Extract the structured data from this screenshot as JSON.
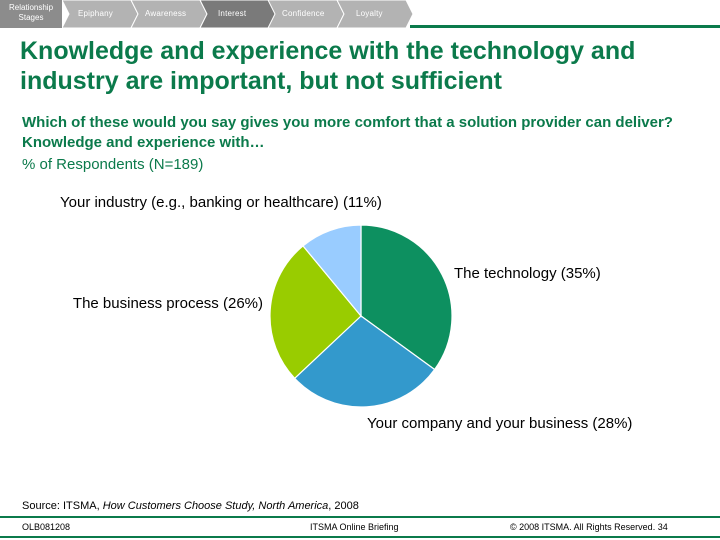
{
  "stage_bar": {
    "title": "Relationship Stages",
    "stages": [
      "Epiphany",
      "Awareness",
      "Interest",
      "Confidence",
      "Loyalty"
    ],
    "active_stage": "Interest",
    "colors": {
      "inactive": "#b3b3b3",
      "active": "#7a7a7a",
      "accent": "#0b7a4b"
    }
  },
  "slide": {
    "headline": "Knowledge and experience with the technology and industry are important, but not sufficient",
    "question": "Which of these would you say gives you more comfort that a solution provider can deliver? Knowledge and experience with…",
    "base": "% of Respondents (N=189)"
  },
  "chart_data": {
    "type": "pie",
    "title": "",
    "slices": [
      {
        "label": "The technology (35%)",
        "value": 35,
        "color": "#0d9060"
      },
      {
        "label": "Your company and your business (28%)",
        "value": 28,
        "color": "#3399cc"
      },
      {
        "label": "The business process (26%)",
        "value": 26,
        "color": "#99cc00"
      },
      {
        "label": "Your industry (e.g., banking or healthcare) (11%)",
        "value": 11,
        "color": "#99ccff"
      }
    ],
    "start_angle": "12 o'clock",
    "direction": "clockwise",
    "legend": "none (direct labels)"
  },
  "source": {
    "prefix": "Source: ITSMA, ",
    "title": "How Customers Choose Study, North America",
    "suffix": ", 2008"
  },
  "footer": {
    "code": "OLB081208",
    "briefing": "ITSMA Online Briefing",
    "copyright": "© 2008 ITSMA. All Rights Reserved. 34"
  }
}
